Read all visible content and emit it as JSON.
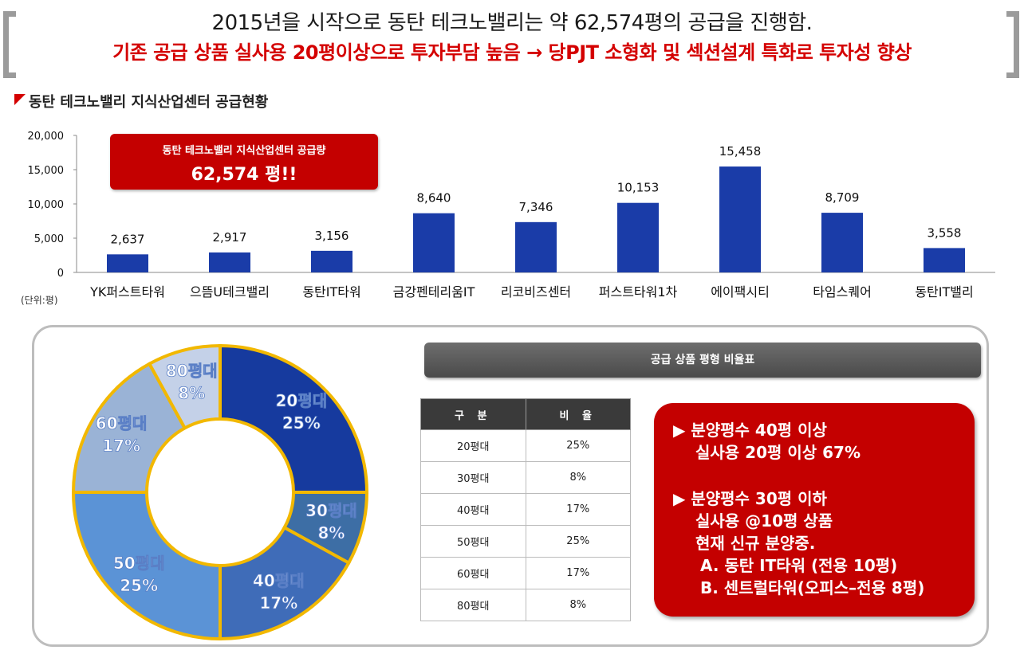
{
  "header": {
    "line1": "2015년을 시작으로 동탄 테크노밸리는 약 62,574평의 공급을 진행함.",
    "line2": "기존 공급 상품 실사용 20평이상으로 투자부담 높음 → 당PJT 소형화 및 섹션설계 특화로 투자성 향상"
  },
  "section_title": "동탄 테크노밸리 지식산업센터 공급현황",
  "unit_label": "(단위:평)",
  "callout": {
    "title": "동탄 테크노밸리 지식산업센터 공급량",
    "value": "62,574 평!!"
  },
  "chart_data": [
    {
      "type": "bar",
      "categories": [
        "YK퍼스트타워",
        "으뜸U테크밸리",
        "동탄IT타워",
        "금강펜테리움IT",
        "리코비즈센터",
        "퍼스트타워1차",
        "에이팩시티",
        "타임스퀘어",
        "동탄IT밸리"
      ],
      "values": [
        2637,
        2917,
        3156,
        8640,
        7346,
        10153,
        15458,
        8709,
        3558
      ],
      "value_labels": [
        "2,637",
        "2,917",
        "3,156",
        "8,640",
        "7,346",
        "10,153",
        "15,458",
        "8,709",
        "3,558"
      ],
      "yticks": [
        "0",
        "5,000",
        "10,000",
        "15,000",
        "20,000"
      ],
      "ylim": [
        0,
        20000
      ],
      "bar_color": "#1a3ca8"
    },
    {
      "type": "pie",
      "labels": [
        "20평대",
        "30평대",
        "40평대",
        "50평대",
        "60평대",
        "80평대"
      ],
      "values": [
        25,
        8,
        17,
        25,
        17,
        8
      ],
      "value_labels": [
        "25%",
        "8%",
        "17%",
        "25%",
        "17%",
        "8%"
      ],
      "colors": [
        "#163a9e",
        "#3d6ea5",
        "#3f6cb8",
        "#5b93d6",
        "#9ab3d6",
        "#c4d1e8"
      ],
      "border_color": "#f2b800"
    }
  ],
  "ratio_table": {
    "title": "공급 상품 평형 비율표",
    "headers": [
      "구 분",
      "비 율"
    ],
    "rows": [
      [
        "20평대",
        "25%"
      ],
      [
        "30평대",
        "8%"
      ],
      [
        "40평대",
        "17%"
      ],
      [
        "50평대",
        "25%"
      ],
      [
        "60평대",
        "17%"
      ],
      [
        "80평대",
        "8%"
      ]
    ]
  },
  "info": {
    "b1_line1": "▶ 분양평수 40평 이상",
    "b1_line2": "실사용 20평 이상 67%",
    "b2_line1": "▶ 분양평수 30평 이하",
    "b2_line2": "실사용 @10평 상품",
    "b2_line3": "현재 신규 분양중.",
    "b2_a": "A. 동탄 IT타워 (전용 10평)",
    "b2_b": "B. 센트럴타워(오피스–전용 8평)"
  }
}
